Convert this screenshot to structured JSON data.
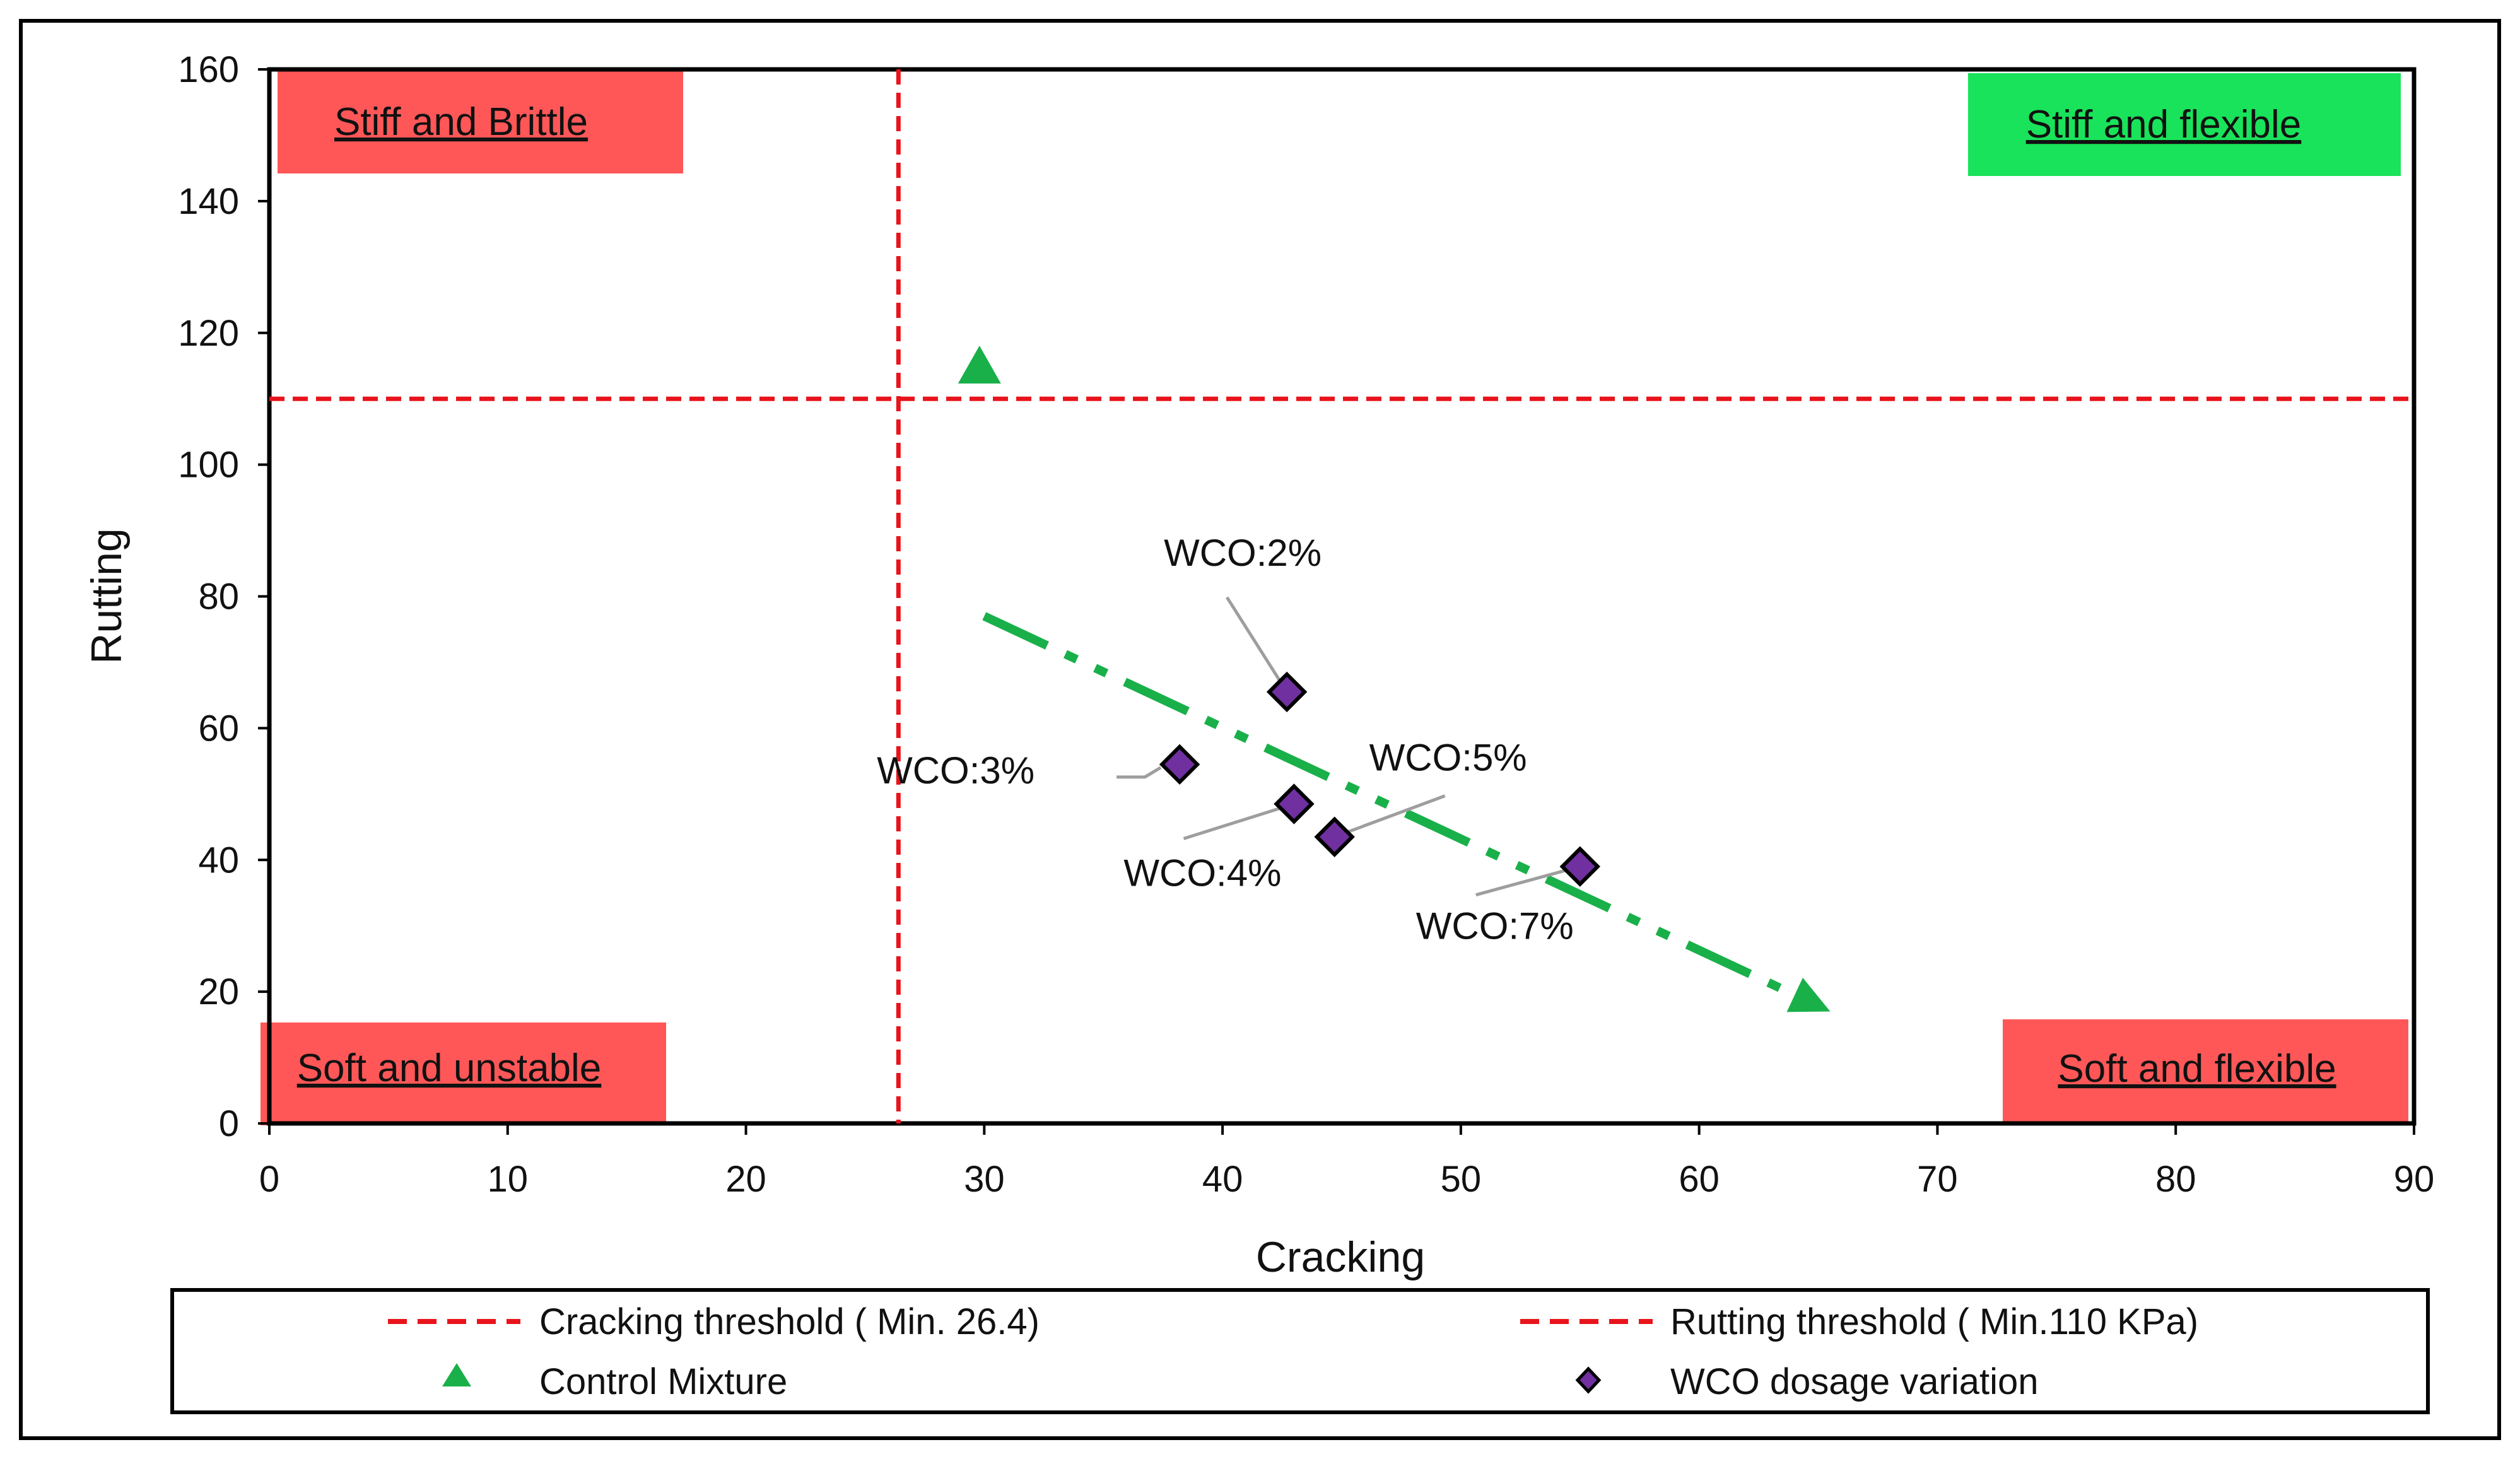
{
  "chart_data": {
    "type": "scatter",
    "xlabel": "Cracking",
    "ylabel": "Rutting",
    "xlim": [
      0,
      90
    ],
    "ylim": [
      0,
      160
    ],
    "xticks": [
      "0",
      "10",
      "20",
      "30",
      "40",
      "50",
      "60",
      "70",
      "80",
      "90"
    ],
    "yticks": [
      "0",
      "20",
      "40",
      "60",
      "80",
      "100",
      "120",
      "140",
      "160"
    ],
    "thresholds": {
      "cracking": {
        "x": 26.4,
        "label": "Cracking threshold ( Min. 26.4)",
        "color": "#e8141c"
      },
      "rutting": {
        "y": 110,
        "label": "Rutting threshold ( Min.110 KPa)",
        "color": "#e8141c"
      }
    },
    "series": [
      {
        "name": "Control Mixture",
        "marker": "triangle",
        "color": "#19b04a",
        "points": [
          {
            "x": 29.8,
            "y": 115
          }
        ]
      },
      {
        "name": "WCO dosage variation",
        "marker": "diamond",
        "color": "#7030a0",
        "points": [
          {
            "label": "WCO:2%",
            "x": 42.7,
            "y": 65.5
          },
          {
            "label": "WCO:3%",
            "x": 38.2,
            "y": 54.5
          },
          {
            "label": "WCO:4%",
            "x": 43.0,
            "y": 48.5
          },
          {
            "label": "WCO:5%",
            "x": 44.7,
            "y": 43.5
          },
          {
            "label": "WCO:7%",
            "x": 55.0,
            "y": 39
          }
        ]
      }
    ],
    "trend_arrow": {
      "from": [
        30,
        77
      ],
      "to": [
        65.5,
        17
      ],
      "color": "#19b04a"
    },
    "quadrants": [
      {
        "label": "Stiff and Brittle",
        "color": "#ff5757",
        "position": "top-left"
      },
      {
        "label": "Stiff and flexible",
        "color": "#19e35a",
        "position": "top-right"
      },
      {
        "label": "Soft and unstable",
        "color": "#ff5757",
        "position": "bottom-left"
      },
      {
        "label": "Soft and flexible",
        "color": "#ff5757",
        "position": "bottom-right"
      }
    ],
    "legend": [
      {
        "label": "Cracking threshold ( Min. 26.4)",
        "symbol": "dashed-line",
        "color": "#e8141c"
      },
      {
        "label": "Rutting threshold ( Min.110 KPa)",
        "symbol": "dashed-line",
        "color": "#e8141c"
      },
      {
        "label": "Control Mixture",
        "symbol": "triangle",
        "color": "#19b04a"
      },
      {
        "label": "WCO dosage variation",
        "symbol": "diamond",
        "color": "#7030a0"
      }
    ]
  }
}
